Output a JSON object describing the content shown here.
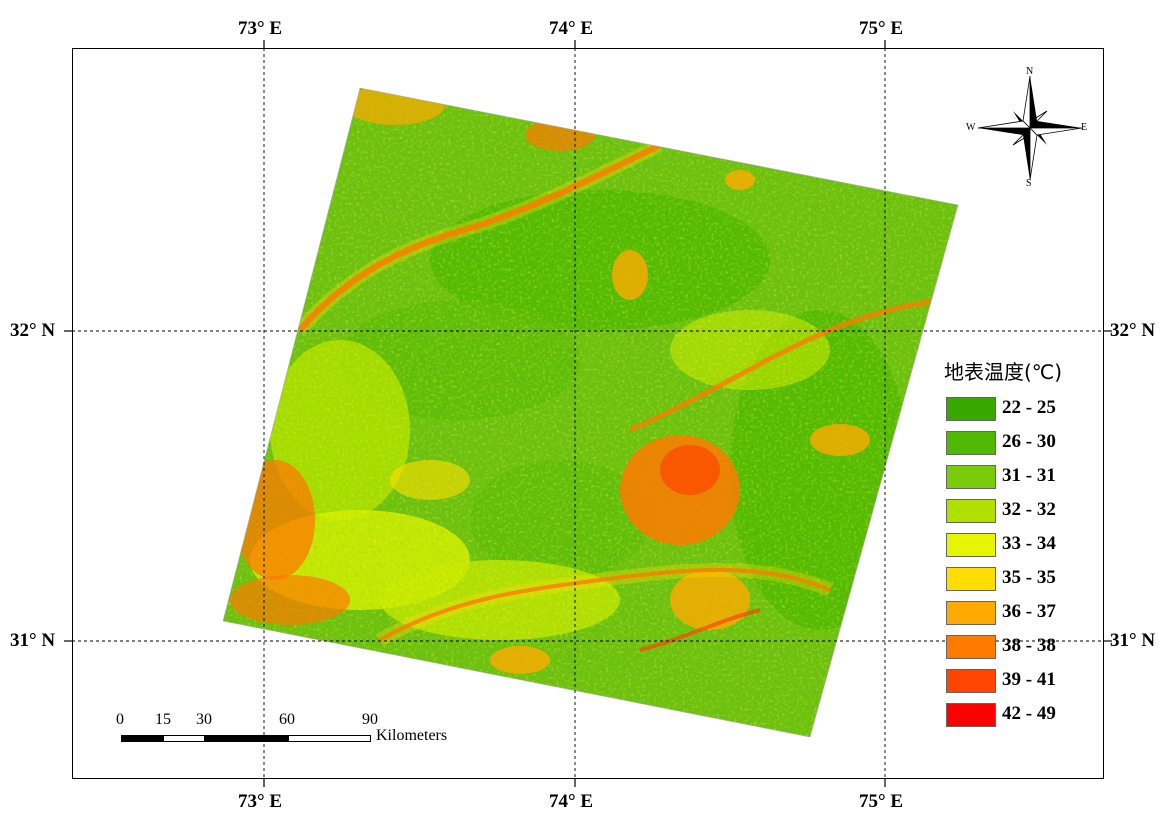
{
  "axes": {
    "top": [
      "73° E",
      "74° E",
      "75° E"
    ],
    "bottom": [
      "73° E",
      "74° E",
      "75° E"
    ],
    "left": [
      "32° N",
      "31° N"
    ],
    "right": [
      "32° N",
      "31° N"
    ]
  },
  "legend": {
    "title": "地表温度(℃)",
    "items": [
      {
        "label": "22 - 25",
        "color": "#38a800"
      },
      {
        "label": "26 - 30",
        "color": "#4fb800"
      },
      {
        "label": "31 - 31",
        "color": "#7acc0a"
      },
      {
        "label": "32 - 32",
        "color": "#b0e000"
      },
      {
        "label": "33 - 34",
        "color": "#e6f500"
      },
      {
        "label": "35 - 35",
        "color": "#ffdd00"
      },
      {
        "label": "36 - 37",
        "color": "#ffaa00"
      },
      {
        "label": "38 - 38",
        "color": "#ff7a00"
      },
      {
        "label": "39 - 41",
        "color": "#ff4500"
      },
      {
        "label": "42 - 49",
        "color": "#ff0000"
      }
    ]
  },
  "scalebar": {
    "ticks": [
      "0",
      "15",
      "30",
      "60",
      "90"
    ],
    "units": "Kilometers"
  },
  "compass": {
    "n": "N",
    "s": "S",
    "e": "E",
    "w": "W"
  }
}
